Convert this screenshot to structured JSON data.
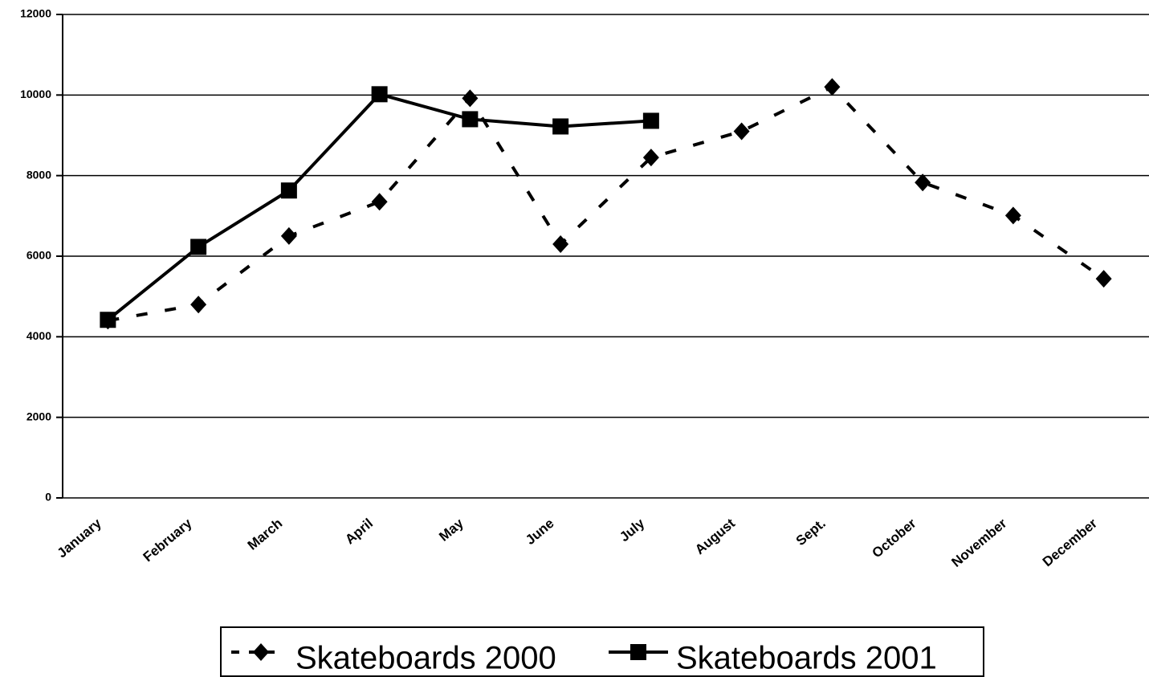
{
  "chart_data": {
    "type": "line",
    "categories": [
      "January",
      "February",
      "March",
      "April",
      "May",
      "June",
      "July",
      "August",
      "Sept.",
      "October",
      "November",
      "December"
    ],
    "series": [
      {
        "name": "Skateboards 2000",
        "color": "#000000",
        "dash": true,
        "marker": "diamond",
        "values": [
          4400,
          4800,
          6500,
          7350,
          9920,
          6300,
          8450,
          9100,
          10200,
          7830,
          7010,
          5440
        ]
      },
      {
        "name": "Skateboards 2001",
        "color": "#000000",
        "dash": false,
        "marker": "square",
        "values": [
          4420,
          6230,
          7630,
          10020,
          9400,
          9220,
          9360,
          null,
          null,
          null,
          null,
          null
        ]
      }
    ],
    "ylim": [
      0,
      12000
    ],
    "yticks": [
      0,
      2000,
      4000,
      6000,
      8000,
      10000,
      12000
    ],
    "grid": true
  }
}
